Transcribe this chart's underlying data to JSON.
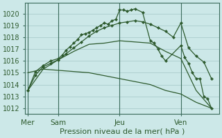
{
  "background_color": "#cce8e8",
  "grid_color": "#aacccc",
  "line_color": "#2d5a2d",
  "xlabel": "Pression niveau de la mer( hPa )",
  "ylim": [
    1011.5,
    1020.9
  ],
  "xlim": [
    -2,
    150
  ],
  "yticks": [
    1012,
    1013,
    1014,
    1015,
    1016,
    1017,
    1018,
    1019,
    1020
  ],
  "xtick_pos": [
    0,
    24,
    72,
    120
  ],
  "xtick_labels": [
    "Mer",
    "Sam",
    "Jeu",
    "Ven"
  ],
  "vlines": [
    0,
    24,
    72,
    120
  ],
  "line1_x": [
    0,
    12,
    24,
    48,
    72,
    96,
    108,
    120,
    132,
    144
  ],
  "line1_y": [
    1015.0,
    1015.3,
    1015.2,
    1015.0,
    1014.5,
    1014.0,
    1013.5,
    1013.2,
    1012.5,
    1012.0
  ],
  "line2_x": [
    0,
    12,
    24,
    36,
    48,
    60,
    72,
    84,
    96,
    108,
    120,
    132,
    144
  ],
  "line2_y": [
    1013.5,
    1015.3,
    1016.1,
    1016.8,
    1017.4,
    1017.5,
    1017.7,
    1017.6,
    1017.5,
    1016.8,
    1016.2,
    1013.5,
    1012.0
  ],
  "line3_x": [
    0,
    6,
    12,
    18,
    24,
    30,
    36,
    42,
    48,
    54,
    60,
    66,
    72,
    78,
    84,
    90,
    96,
    102,
    108,
    114,
    120,
    126,
    132,
    138,
    144
  ],
  "line3_y": [
    1013.5,
    1014.8,
    1015.5,
    1015.8,
    1016.1,
    1016.6,
    1017.1,
    1017.6,
    1018.1,
    1018.5,
    1018.8,
    1019.0,
    1019.2,
    1019.3,
    1019.4,
    1019.3,
    1019.1,
    1018.8,
    1018.5,
    1018.0,
    1019.2,
    1017.1,
    1016.4,
    1015.9,
    1014.5
  ],
  "line4_x": [
    0,
    6,
    12,
    18,
    24,
    27,
    30,
    33,
    36,
    39,
    42,
    45,
    48,
    51,
    54,
    57,
    60,
    63,
    66,
    69,
    72,
    75,
    78,
    81,
    84,
    90,
    96,
    99,
    102,
    105,
    108,
    120,
    123,
    126,
    129,
    132,
    135,
    138,
    141,
    144
  ],
  "line4_y": [
    1013.5,
    1015.1,
    1015.6,
    1016.0,
    1016.2,
    1016.5,
    1016.9,
    1017.2,
    1017.5,
    1017.8,
    1018.2,
    1018.3,
    1018.4,
    1018.6,
    1018.8,
    1019.0,
    1019.2,
    1019.1,
    1019.4,
    1019.5,
    1020.3,
    1020.3,
    1020.2,
    1020.3,
    1020.4,
    1020.1,
    1017.7,
    1017.5,
    1017.0,
    1016.4,
    1016.0,
    1017.3,
    1016.3,
    1015.8,
    1015.0,
    1014.5,
    1014.5,
    1013.0,
    1012.8,
    1012.0
  ]
}
